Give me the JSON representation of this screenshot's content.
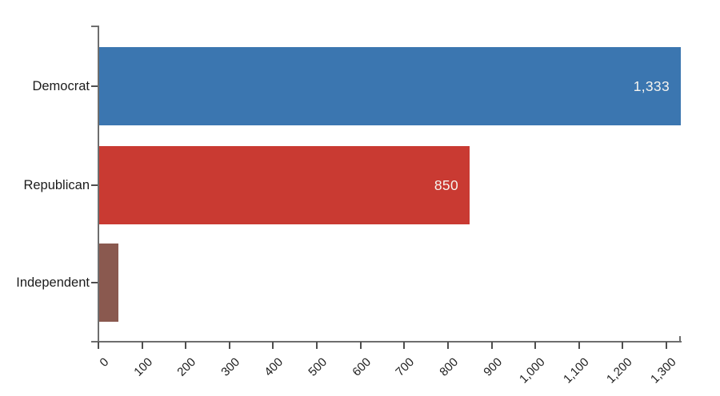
{
  "chart_data": {
    "type": "bar",
    "orientation": "horizontal",
    "title": "",
    "xlabel": "",
    "ylabel": "",
    "categories": [
      "Democrat",
      "Republican",
      "Independent"
    ],
    "values": [
      1333,
      850,
      45
    ],
    "bar_value_labels": [
      "1,333",
      "850",
      ""
    ],
    "bar_colors": [
      "#3b76b0",
      "#c93a32",
      "#8a594f"
    ],
    "value_label_color": "#f6f4ef",
    "axis_line_color": "#6e6e6e",
    "tick_color": "#4e4e4e",
    "tick_text_color": "#1d1d1d",
    "background_color": "#ffffff",
    "xlim": [
      0,
      1333
    ],
    "x_ticks": [
      0,
      100,
      200,
      300,
      400,
      500,
      600,
      700,
      800,
      900,
      1000,
      1100,
      1200,
      1300
    ],
    "x_tick_labels": [
      "0",
      "100",
      "200",
      "300",
      "400",
      "500",
      "600",
      "700",
      "800",
      "900",
      "1,000",
      "1,100",
      "1,200",
      "1,300"
    ],
    "x_tick_label_rotation_deg": -45,
    "grid": false,
    "legend": false
  }
}
